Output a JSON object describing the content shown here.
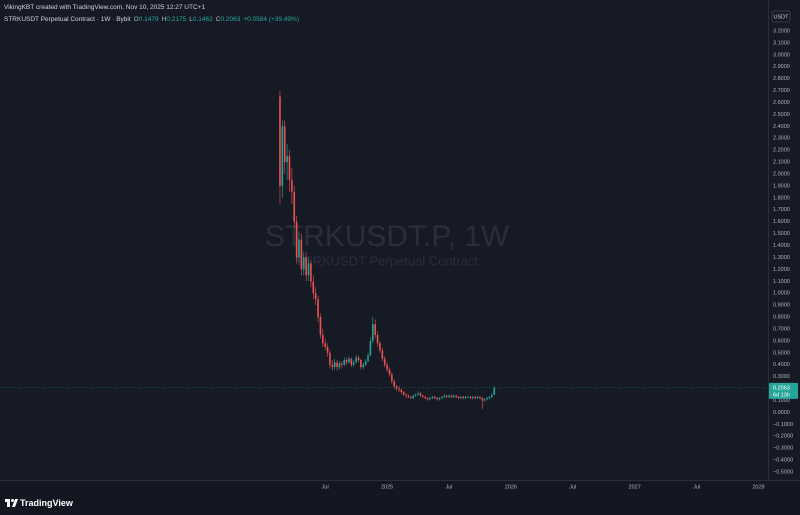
{
  "header": {
    "credit": "VikingKBT created with TradingView.com, Nov 10, 2025 12:27 UTC+1",
    "symbol_line": "STRKUSDT Perpetual Contract · 1W · Bybit",
    "ohlc_labels": [
      "O",
      "H",
      "L",
      "C"
    ],
    "change": "+0.0584 (+39.49%)"
  },
  "chart_data": {
    "type": "candlestick",
    "watermark": "STRKUSDT.P, 1W",
    "watermark_subtitle": "STRKUSDT Perpetual Contract",
    "currency": "USDT",
    "countdown": "6d 13h",
    "brand": "TradingView",
    "up_color": "#26a69a",
    "down_color": "#ef5350",
    "xlim": [
      -117.6,
      205
    ],
    "xticks": [
      {
        "value": 19,
        "label": "Jul"
      },
      {
        "value": 45,
        "label": "2025"
      },
      {
        "value": 71,
        "label": "Jul"
      },
      {
        "value": 97,
        "label": "2026"
      },
      {
        "value": 123,
        "label": "Jul"
      },
      {
        "value": 149,
        "label": "2027"
      },
      {
        "value": 175,
        "label": "Jul"
      },
      {
        "value": 201,
        "label": "2028"
      }
    ],
    "ylim": [
      -0.567,
      3.46
    ],
    "yticks": [
      {
        "value": 3.2,
        "label": "3.2000"
      },
      {
        "value": 3.1,
        "label": "3.1000"
      },
      {
        "value": 3.0,
        "label": "3.0000"
      },
      {
        "value": 2.9,
        "label": "2.9000"
      },
      {
        "value": 2.8,
        "label": "2.8000"
      },
      {
        "value": 2.7,
        "label": "2.7000"
      },
      {
        "value": 2.6,
        "label": "2.6000"
      },
      {
        "value": 2.5,
        "label": "2.5000"
      },
      {
        "value": 2.4,
        "label": "2.4000"
      },
      {
        "value": 2.3,
        "label": "2.3000"
      },
      {
        "value": 2.2,
        "label": "2.2000"
      },
      {
        "value": 2.1,
        "label": "2.1000"
      },
      {
        "value": 2.0,
        "label": "2.0000"
      },
      {
        "value": 1.9,
        "label": "1.9000"
      },
      {
        "value": 1.8,
        "label": "1.8000"
      },
      {
        "value": 1.7,
        "label": "1.7000"
      },
      {
        "value": 1.6,
        "label": "1.6000"
      },
      {
        "value": 1.5,
        "label": "1.5000"
      },
      {
        "value": 1.4,
        "label": "1.4000"
      },
      {
        "value": 1.3,
        "label": "1.3000"
      },
      {
        "value": 1.2,
        "label": "1.2000"
      },
      {
        "value": 1.1,
        "label": "1.1000"
      },
      {
        "value": 1.0,
        "label": "1.0000"
      },
      {
        "value": 0.9,
        "label": "0.9000"
      },
      {
        "value": 0.8,
        "label": "0.8000"
      },
      {
        "value": 0.7,
        "label": "0.7000"
      },
      {
        "value": 0.6,
        "label": "0.6000"
      },
      {
        "value": 0.5,
        "label": "0.5000"
      },
      {
        "value": 0.4,
        "label": "0.4000"
      },
      {
        "value": 0.3,
        "label": "0.3000"
      },
      {
        "value": 0.1,
        "label": "0.1000"
      },
      {
        "value": 0.0,
        "label": "0.0000"
      },
      {
        "value": -0.1,
        "label": "−0.1000"
      },
      {
        "value": -0.2,
        "label": "−0.2000"
      },
      {
        "value": -0.3,
        "label": "−0.3000"
      },
      {
        "value": -0.4,
        "label": "−0.4000"
      },
      {
        "value": -0.5,
        "label": "−0.5000"
      }
    ],
    "candles": {
      "x": [
        0,
        1,
        2,
        3,
        4,
        5,
        6,
        7,
        8,
        9,
        10,
        11,
        12,
        13,
        14,
        15,
        16,
        17,
        18,
        19,
        20,
        21,
        22,
        23,
        24,
        25,
        26,
        27,
        28,
        29,
        30,
        31,
        32,
        33,
        34,
        35,
        36,
        37,
        38,
        39,
        40,
        41,
        42,
        43,
        44,
        45,
        46,
        47,
        48,
        49,
        50,
        51,
        52,
        53,
        54,
        55,
        56,
        57,
        58,
        59,
        60,
        61,
        62,
        63,
        64,
        65,
        66,
        67,
        68,
        69,
        70,
        71,
        72,
        73,
        74,
        75,
        76,
        77,
        78,
        79,
        80,
        81,
        82,
        83,
        84,
        85,
        86,
        87,
        88,
        89,
        90
      ],
      "open": [
        2.65,
        1.9,
        2.4,
        2.1,
        2.15,
        1.95,
        1.85,
        1.6,
        1.3,
        1.45,
        1.2,
        1.3,
        1.15,
        1.25,
        1.1,
        1.0,
        0.95,
        0.8,
        0.65,
        0.58,
        0.55,
        0.5,
        0.4,
        0.38,
        0.42,
        0.38,
        0.41,
        0.4,
        0.44,
        0.42,
        0.45,
        0.4,
        0.42,
        0.46,
        0.44,
        0.38,
        0.4,
        0.43,
        0.48,
        0.6,
        0.74,
        0.65,
        0.58,
        0.52,
        0.45,
        0.4,
        0.36,
        0.32,
        0.26,
        0.22,
        0.2,
        0.19,
        0.17,
        0.15,
        0.14,
        0.13,
        0.12,
        0.14,
        0.15,
        0.16,
        0.14,
        0.13,
        0.12,
        0.11,
        0.12,
        0.13,
        0.12,
        0.11,
        0.12,
        0.13,
        0.14,
        0.13,
        0.14,
        0.13,
        0.14,
        0.13,
        0.12,
        0.13,
        0.12,
        0.13,
        0.13,
        0.12,
        0.13,
        0.12,
        0.13,
        0.12,
        0.1,
        0.11,
        0.12,
        0.13,
        0.1479
      ],
      "high": [
        2.7,
        2.45,
        2.45,
        2.25,
        2.2,
        2.05,
        1.9,
        1.65,
        1.52,
        1.5,
        1.35,
        1.35,
        1.3,
        1.28,
        1.15,
        1.05,
        0.98,
        0.83,
        0.7,
        0.62,
        0.58,
        0.52,
        0.44,
        0.45,
        0.44,
        0.43,
        0.43,
        0.46,
        0.46,
        0.47,
        0.46,
        0.44,
        0.48,
        0.48,
        0.45,
        0.42,
        0.45,
        0.5,
        0.63,
        0.8,
        0.78,
        0.68,
        0.6,
        0.54,
        0.47,
        0.42,
        0.38,
        0.34,
        0.28,
        0.23,
        0.22,
        0.2,
        0.18,
        0.16,
        0.15,
        0.14,
        0.15,
        0.16,
        0.18,
        0.17,
        0.15,
        0.14,
        0.13,
        0.13,
        0.14,
        0.14,
        0.13,
        0.13,
        0.14,
        0.15,
        0.15,
        0.15,
        0.15,
        0.15,
        0.15,
        0.14,
        0.14,
        0.14,
        0.14,
        0.14,
        0.14,
        0.14,
        0.14,
        0.14,
        0.14,
        0.13,
        0.12,
        0.13,
        0.14,
        0.16,
        0.2175
      ],
      "low": [
        1.75,
        1.8,
        2.0,
        1.95,
        1.85,
        1.75,
        1.55,
        1.25,
        1.25,
        1.15,
        1.15,
        1.1,
        1.1,
        1.05,
        0.95,
        0.9,
        0.76,
        0.62,
        0.55,
        0.52,
        0.47,
        0.37,
        0.35,
        0.36,
        0.35,
        0.36,
        0.37,
        0.39,
        0.4,
        0.41,
        0.38,
        0.38,
        0.41,
        0.42,
        0.36,
        0.36,
        0.39,
        0.42,
        0.47,
        0.58,
        0.62,
        0.55,
        0.5,
        0.43,
        0.38,
        0.34,
        0.3,
        0.24,
        0.2,
        0.18,
        0.17,
        0.15,
        0.14,
        0.12,
        0.12,
        0.11,
        0.11,
        0.13,
        0.14,
        0.13,
        0.12,
        0.11,
        0.1,
        0.1,
        0.11,
        0.11,
        0.1,
        0.1,
        0.11,
        0.12,
        0.12,
        0.12,
        0.12,
        0.12,
        0.12,
        0.11,
        0.11,
        0.11,
        0.11,
        0.12,
        0.11,
        0.11,
        0.11,
        0.11,
        0.11,
        0.03,
        0.09,
        0.1,
        0.11,
        0.12,
        0.1462
      ],
      "close": [
        1.9,
        2.4,
        2.1,
        2.15,
        1.95,
        1.85,
        1.6,
        1.3,
        1.45,
        1.2,
        1.3,
        1.15,
        1.25,
        1.1,
        1.0,
        0.95,
        0.8,
        0.65,
        0.58,
        0.55,
        0.5,
        0.4,
        0.38,
        0.42,
        0.38,
        0.41,
        0.4,
        0.44,
        0.42,
        0.45,
        0.4,
        0.42,
        0.46,
        0.44,
        0.38,
        0.4,
        0.43,
        0.48,
        0.6,
        0.74,
        0.65,
        0.58,
        0.52,
        0.45,
        0.4,
        0.36,
        0.32,
        0.26,
        0.22,
        0.2,
        0.19,
        0.17,
        0.15,
        0.14,
        0.13,
        0.12,
        0.14,
        0.15,
        0.16,
        0.14,
        0.13,
        0.12,
        0.11,
        0.12,
        0.13,
        0.12,
        0.11,
        0.12,
        0.13,
        0.14,
        0.13,
        0.14,
        0.13,
        0.14,
        0.13,
        0.12,
        0.13,
        0.12,
        0.13,
        0.13,
        0.12,
        0.13,
        0.12,
        0.13,
        0.12,
        0.1,
        0.11,
        0.12,
        0.13,
        0.1479,
        0.2063
      ]
    }
  }
}
